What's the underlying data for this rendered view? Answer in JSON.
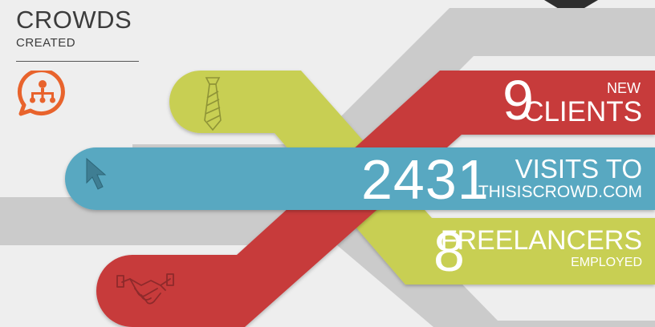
{
  "header": {
    "title": "CROWDS",
    "subtitle": "CREATED",
    "icon": "org-chart-speech-icon"
  },
  "stats": {
    "clients": {
      "number": "9",
      "line1": "NEW",
      "line2": "CLIENTS",
      "icon": "tie-icon",
      "color": "#c73a3b"
    },
    "visits": {
      "number": "2431",
      "line1": "VISITS TO",
      "line2": "THISISCROWD.COM",
      "icon": "cursor-arrow-icon",
      "color": "#58a8c1"
    },
    "freelancers": {
      "number": "8",
      "line1": "FREELANCERS",
      "line2": "EMPLOYED",
      "icon": "handshake-icon",
      "color": "#c8cf53"
    }
  },
  "colors": {
    "background": "#eeeeee",
    "gray_band": "#cbcbcb",
    "red": "#c73a3b",
    "blue": "#58a8c1",
    "green": "#c8cf53",
    "orange": "#e8632c",
    "dark": "#2e2e2e"
  }
}
